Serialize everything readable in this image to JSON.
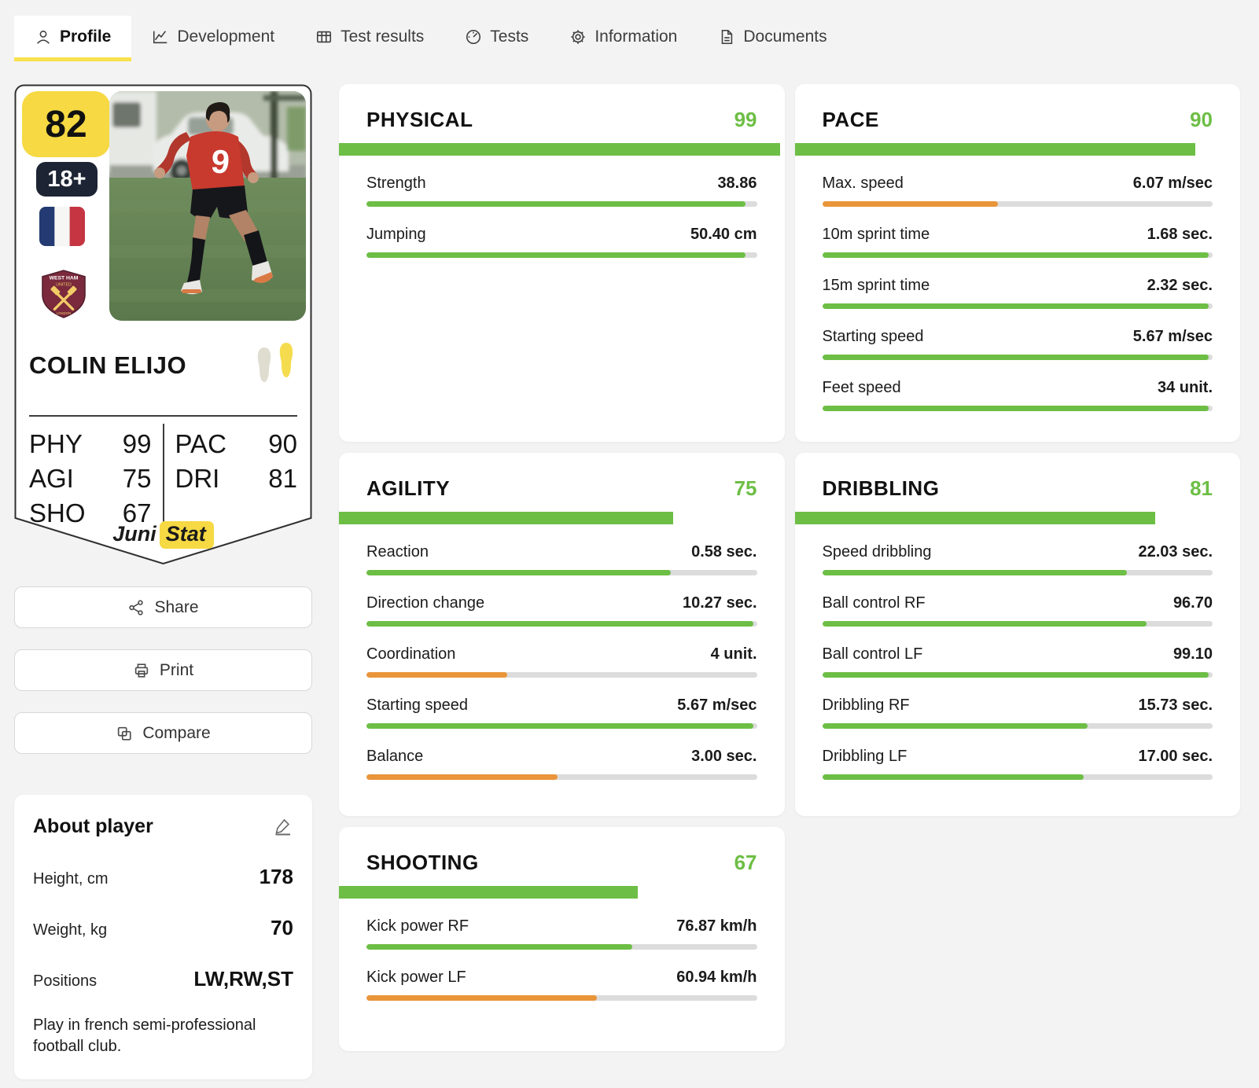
{
  "colors": {
    "green": "#6dbe45",
    "orange": "#e9953a",
    "yellow": "#f6d943",
    "navy": "#1d2433",
    "track": "#dcdcdc"
  },
  "tabs": [
    {
      "label": "Profile",
      "icon": "person-icon",
      "active": true
    },
    {
      "label": "Development",
      "icon": "line-chart-icon",
      "active": false
    },
    {
      "label": "Test results",
      "icon": "table-icon",
      "active": false
    },
    {
      "label": "Tests",
      "icon": "speedometer-icon",
      "active": false
    },
    {
      "label": "Information",
      "icon": "gear-icon",
      "active": false
    },
    {
      "label": "Documents",
      "icon": "document-icon",
      "active": false
    }
  ],
  "card": {
    "rating": "82",
    "age_badge": "18+",
    "nationality_flag": "france-flag",
    "club_crest": "west-ham-united-crest",
    "crest_text_top": "WEST HAM",
    "crest_text_mid": "UNITED",
    "name": "COLIN ELIJO",
    "photo_jersey_number": "9",
    "stats_left": [
      {
        "code": "PHY",
        "value": "99"
      },
      {
        "code": "AGI",
        "value": "75"
      },
      {
        "code": "SHO",
        "value": "67"
      }
    ],
    "stats_right": [
      {
        "code": "PAC",
        "value": "90"
      },
      {
        "code": "DRI",
        "value": "81"
      }
    ],
    "brand_word1": "Juni",
    "brand_word2": "Stat"
  },
  "actions": [
    {
      "label": "Share",
      "icon": "share-icon"
    },
    {
      "label": "Print",
      "icon": "printer-icon"
    },
    {
      "label": "Compare",
      "icon": "compare-icon"
    }
  ],
  "about": {
    "title": "About player",
    "edit_icon": "edit-pencil-icon",
    "rows": [
      {
        "label": "Height, cm",
        "value": "178"
      },
      {
        "label": "Weight, kg",
        "value": "70"
      },
      {
        "label": "Positions",
        "value": "LW,RW,ST"
      }
    ],
    "description": "Play in french semi-professional football club."
  },
  "panels": [
    {
      "title": "PHYSICAL",
      "score": 99,
      "rows": [
        {
          "label": "Strength",
          "value": "38.86",
          "pct": 97,
          "color": "green"
        },
        {
          "label": "Jumping",
          "value": "50.40 cm",
          "pct": 97,
          "color": "green"
        }
      ]
    },
    {
      "title": "PACE",
      "score": 90,
      "rows": [
        {
          "label": "Max. speed",
          "value": "6.07 m/sec",
          "pct": 45,
          "color": "orange"
        },
        {
          "label": "10m sprint time",
          "value": "1.68 sec.",
          "pct": 99,
          "color": "green"
        },
        {
          "label": "15m sprint time",
          "value": "2.32 sec.",
          "pct": 99,
          "color": "green"
        },
        {
          "label": "Starting speed",
          "value": "5.67 m/sec",
          "pct": 99,
          "color": "green"
        },
        {
          "label": "Feet speed",
          "value": "34 unit.",
          "pct": 99,
          "color": "green"
        }
      ]
    },
    {
      "title": "AGILITY",
      "score": 75,
      "rows": [
        {
          "label": "Reaction",
          "value": "0.58 sec.",
          "pct": 78,
          "color": "green"
        },
        {
          "label": "Direction change",
          "value": "10.27 sec.",
          "pct": 99,
          "color": "green"
        },
        {
          "label": "Coordination",
          "value": "4 unit.",
          "pct": 36,
          "color": "orange"
        },
        {
          "label": "Starting speed",
          "value": "5.67 m/sec",
          "pct": 99,
          "color": "green"
        },
        {
          "label": "Balance",
          "value": "3.00 sec.",
          "pct": 49,
          "color": "orange"
        }
      ]
    },
    {
      "title": "DRIBBLING",
      "score": 81,
      "rows": [
        {
          "label": "Speed dribbling",
          "value": "22.03 sec.",
          "pct": 78,
          "color": "green"
        },
        {
          "label": "Ball control RF",
          "value": "96.70",
          "pct": 83,
          "color": "green"
        },
        {
          "label": "Ball control LF",
          "value": "99.10",
          "pct": 99,
          "color": "green"
        },
        {
          "label": "Dribbling RF",
          "value": "15.73 sec.",
          "pct": 68,
          "color": "green"
        },
        {
          "label": "Dribbling LF",
          "value": "17.00 sec.",
          "pct": 67,
          "color": "green"
        }
      ]
    },
    {
      "title": "SHOOTING",
      "score": 67,
      "rows": [
        {
          "label": "Kick power RF",
          "value": "76.87 km/h",
          "pct": 68,
          "color": "green"
        },
        {
          "label": "Kick power LF",
          "value": "60.94 km/h",
          "pct": 59,
          "color": "orange"
        }
      ]
    }
  ]
}
